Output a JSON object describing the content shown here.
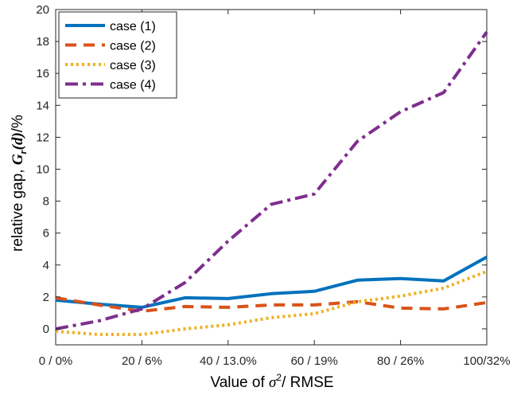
{
  "chart_data": {
    "type": "line",
    "x": [
      0,
      10,
      20,
      30,
      40,
      50,
      60,
      70,
      80,
      90,
      100
    ],
    "xtick_values": [
      0,
      20,
      40,
      60,
      80,
      100
    ],
    "xtick_labels": [
      "0 / 0%",
      "20 / 6%",
      "40 / 13.0%",
      "60 / 19%",
      "80 / 26%",
      "100/32%"
    ],
    "ytick_values": [
      0,
      2,
      4,
      6,
      8,
      10,
      12,
      14,
      16,
      18,
      20
    ],
    "ytick_labels": [
      "0",
      "2",
      "4",
      "6",
      "8",
      "10",
      "12",
      "14",
      "16",
      "18",
      "20"
    ],
    "xlim": [
      0,
      100
    ],
    "ylim": [
      -1,
      20
    ],
    "xlabel_prefix": "Value of ",
    "xlabel_symbol": "σ",
    "xlabel_sup": "2",
    "xlabel_suffix": "/ RMSE",
    "ylabel_prefix": "relative gap, ",
    "ylabel_math": "G",
    "ylabel_sub": "r",
    "ylabel_arg": "(d)",
    "ylabel_suffix": "/%",
    "legend_position": "top-left",
    "grid": false,
    "series": [
      {
        "name": "case (1)",
        "style": "solid",
        "color": "#0072BD",
        "values": [
          1.8,
          1.55,
          1.35,
          1.95,
          1.9,
          2.2,
          2.35,
          3.05,
          3.15,
          3.0,
          4.5
        ]
      },
      {
        "name": "case (2)",
        "style": "dashed",
        "color": "#D95319",
        "values": [
          1.95,
          1.5,
          1.1,
          1.4,
          1.35,
          1.5,
          1.5,
          1.7,
          1.3,
          1.25,
          1.65
        ]
      },
      {
        "name": "case (3)",
        "style": "dotted",
        "color": "#EDB120",
        "values": [
          -0.15,
          -0.35,
          -0.35,
          0.0,
          0.25,
          0.7,
          0.95,
          1.7,
          2.05,
          2.55,
          3.6
        ]
      },
      {
        "name": "case (4)",
        "style": "dashdot",
        "color": "#7E2F8E",
        "values": [
          0.0,
          0.5,
          1.25,
          2.9,
          5.5,
          7.8,
          8.45,
          11.75,
          13.6,
          14.8,
          18.6
        ]
      }
    ]
  }
}
